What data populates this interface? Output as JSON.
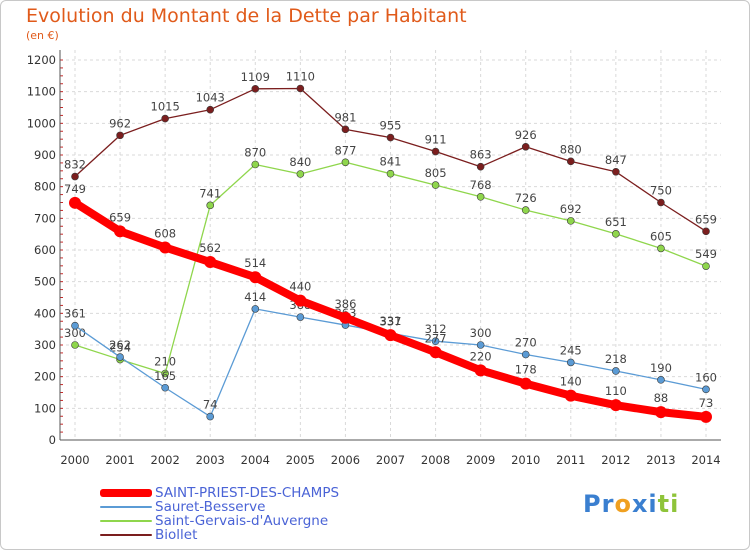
{
  "chart_data": {
    "type": "line",
    "title": "Evolution du Montant de la Dette par Habitant",
    "subtitle": "(en €)",
    "categories": [
      "2000",
      "2001",
      "2002",
      "2003",
      "2004",
      "2005",
      "2006",
      "2007",
      "2008",
      "2009",
      "2010",
      "2011",
      "2012",
      "2013",
      "2014"
    ],
    "ylim": [
      0,
      1200
    ],
    "yticks": [
      0,
      100,
      200,
      300,
      400,
      500,
      600,
      700,
      800,
      900,
      1000,
      1100,
      1200
    ],
    "grid": true,
    "legend_position": "bottom-left",
    "series": [
      {
        "name": "SAINT-PRIEST-DES-CHAMPS",
        "color": "#ff0000",
        "values": [
          749,
          659,
          608,
          562,
          514,
          440,
          386,
          331,
          277,
          220,
          178,
          140,
          110,
          88,
          73
        ]
      },
      {
        "name": "Sauret-Besserve",
        "color": "#5b9bd5",
        "values": [
          361,
          262,
          165,
          74,
          414,
          388,
          363,
          337,
          312,
          300,
          270,
          245,
          218,
          190,
          160
        ]
      },
      {
        "name": "Saint-Gervais-d'Auvergne",
        "color": "#8fd64c",
        "values": [
          300,
          254,
          210,
          741,
          870,
          840,
          877,
          841,
          805,
          768,
          726,
          692,
          651,
          605,
          549
        ]
      },
      {
        "name": "Biollet",
        "color": "#7b1e1e",
        "values": [
          832,
          962,
          1015,
          1043,
          1109,
          1110,
          981,
          955,
          911,
          863,
          926,
          880,
          847,
          750,
          659
        ]
      }
    ]
  },
  "logo": {
    "text": "Proxiti",
    "letters": [
      "P",
      "r",
      "o",
      "x",
      "i",
      "t",
      "i"
    ],
    "colors": [
      "#3a7fd0",
      "#3a7fd0",
      "#f0a020",
      "#3a7fd0",
      "#3a7fd0",
      "#8fc43a",
      "#8fc43a"
    ]
  }
}
